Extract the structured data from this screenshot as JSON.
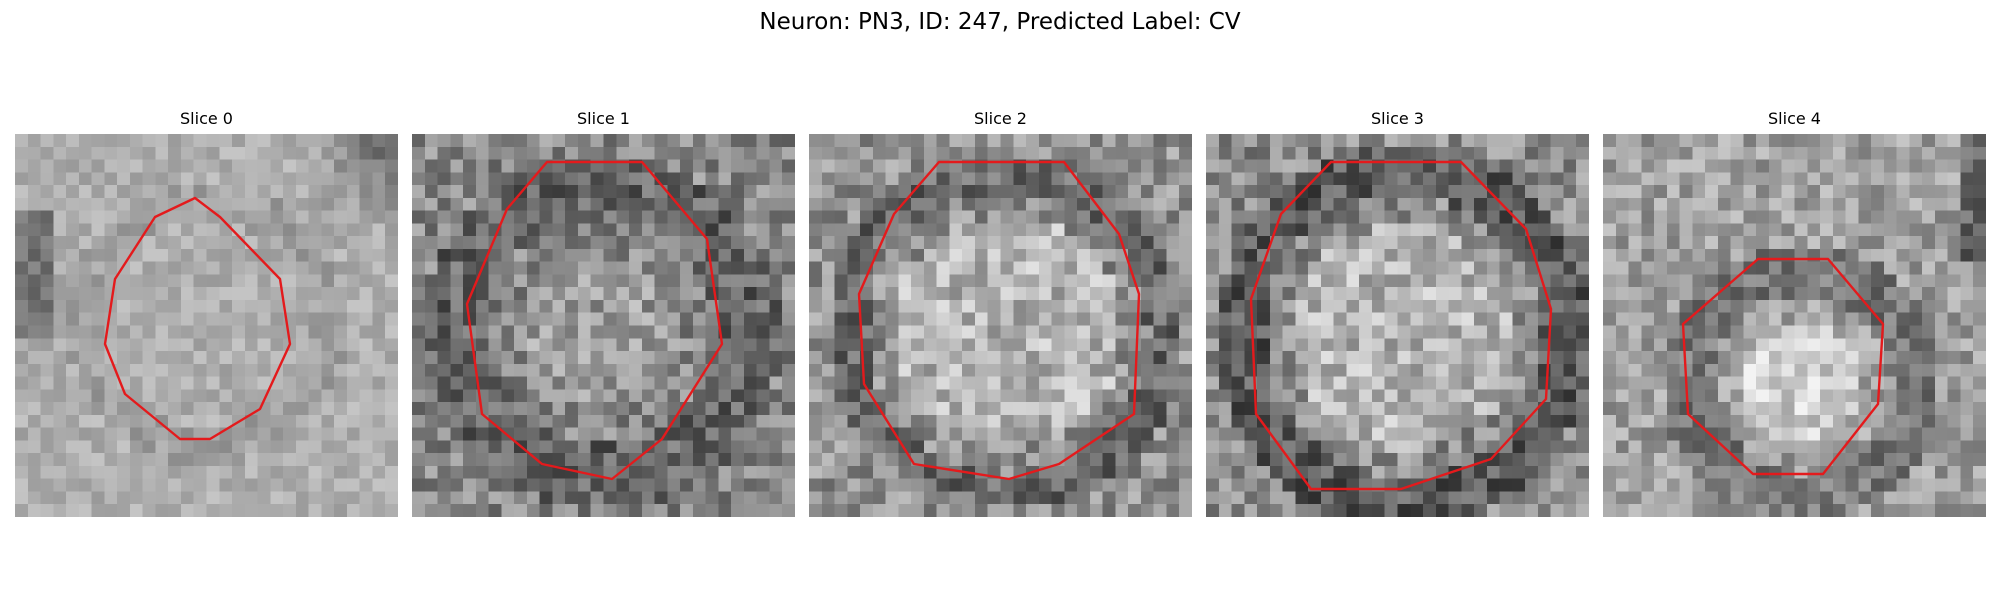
{
  "figure": {
    "title": "Neuron: PN3, ID: 247, Predicted Label: CV",
    "panels": [
      {
        "title": "Slice 0"
      },
      {
        "title": "Slice 1"
      },
      {
        "title": "Slice 2"
      },
      {
        "title": "Slice 3"
      },
      {
        "title": "Slice 4"
      }
    ],
    "contour_color": "#e41a1c",
    "colormap": "grayscale"
  }
}
